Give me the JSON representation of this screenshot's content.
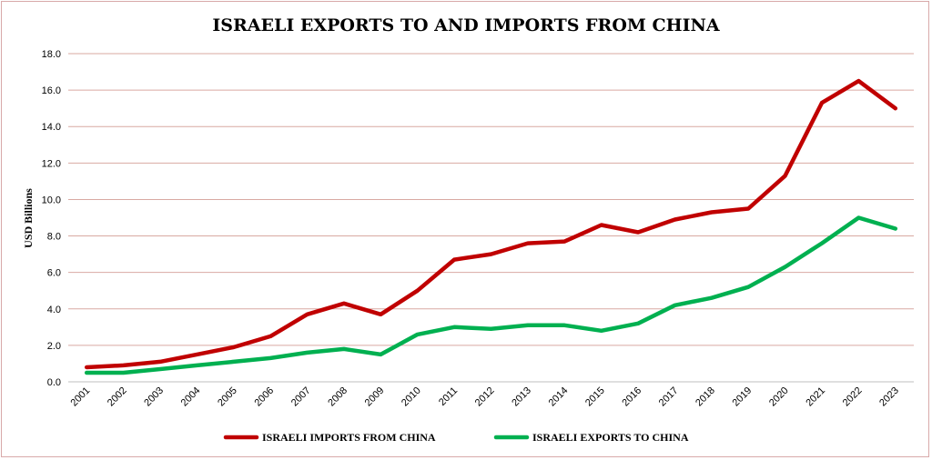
{
  "chart_data": {
    "type": "line",
    "title": "ISRAELI EXPORTS TO AND IMPORTS FROM CHINA",
    "xlabel": "",
    "ylabel": "USD Billions",
    "ylim": [
      0,
      18
    ],
    "ytick_labels": [
      "0.0",
      "2.0",
      "4.0",
      "6.0",
      "8.0",
      "10.0",
      "12.0",
      "14.0",
      "16.0",
      "18.0"
    ],
    "grid": true,
    "legend_position": "bottom",
    "categories": [
      "2001",
      "2002",
      "2003",
      "2004",
      "2005",
      "2006",
      "2007",
      "2008",
      "2009",
      "2010",
      "2011",
      "2012",
      "2013",
      "2014",
      "2015",
      "2016",
      "2017",
      "2018",
      "2019",
      "2020",
      "2021",
      "2022",
      "2023"
    ],
    "series": [
      {
        "name": "ISRAELI IMPORTS FROM CHINA",
        "color": "#c00000",
        "values": [
          0.8,
          0.9,
          1.1,
          1.5,
          1.9,
          2.5,
          3.7,
          4.3,
          3.7,
          5.0,
          6.7,
          7.0,
          7.6,
          7.7,
          8.6,
          8.2,
          8.9,
          9.3,
          9.5,
          11.3,
          15.3,
          16.5,
          15.0
        ]
      },
      {
        "name": "ISRAELI EXPORTS TO CHINA",
        "color": "#00b050",
        "values": [
          0.5,
          0.5,
          0.7,
          0.9,
          1.1,
          1.3,
          1.6,
          1.8,
          1.5,
          2.6,
          3.0,
          2.9,
          3.1,
          3.1,
          2.8,
          3.2,
          4.2,
          4.6,
          5.2,
          6.3,
          7.6,
          9.0,
          8.4
        ]
      }
    ]
  }
}
